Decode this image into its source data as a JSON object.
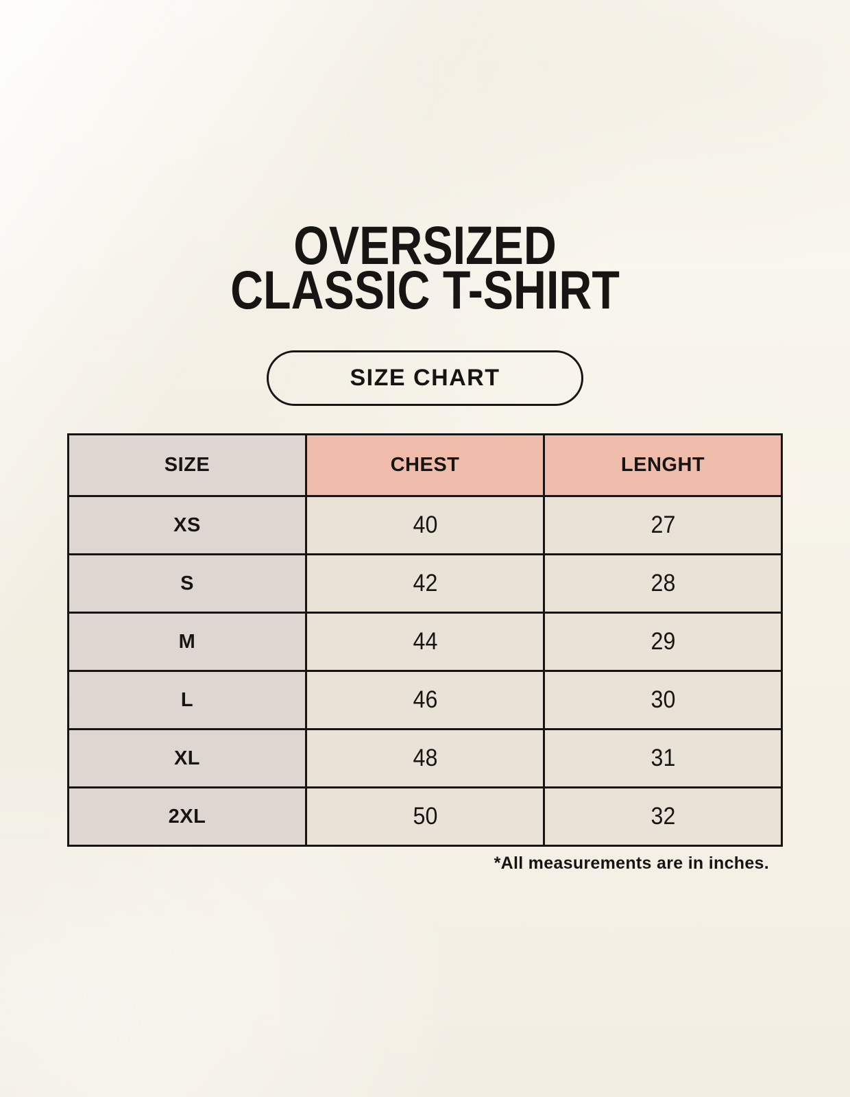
{
  "page": {
    "title_line1": "OVERSIZED",
    "title_line2": "CLASSIC T-SHIRT",
    "button_label": "SIZE CHART"
  },
  "colors": {
    "background": "#f6f2e8",
    "size_column_bg": "#ddd6d1",
    "measure_header_bg": "#efbcab",
    "data_cell_bg": "#e9e2d7",
    "border": "#171513",
    "text": "#171513"
  },
  "chart_data": {
    "type": "table",
    "title": "OVERSIZED CLASSIC T-SHIRT",
    "subtitle": "SIZE CHART",
    "columns": [
      "SIZE",
      "CHEST",
      "LENGHT"
    ],
    "rows": [
      [
        "XS",
        "40",
        "27"
      ],
      [
        "S",
        "42",
        "28"
      ],
      [
        "M",
        "44",
        "29"
      ],
      [
        "L",
        "46",
        "30"
      ],
      [
        "XL",
        "48",
        "31"
      ],
      [
        "2XL",
        "50",
        "32"
      ]
    ],
    "units": "inches",
    "note": "*All measurements are in inches."
  }
}
